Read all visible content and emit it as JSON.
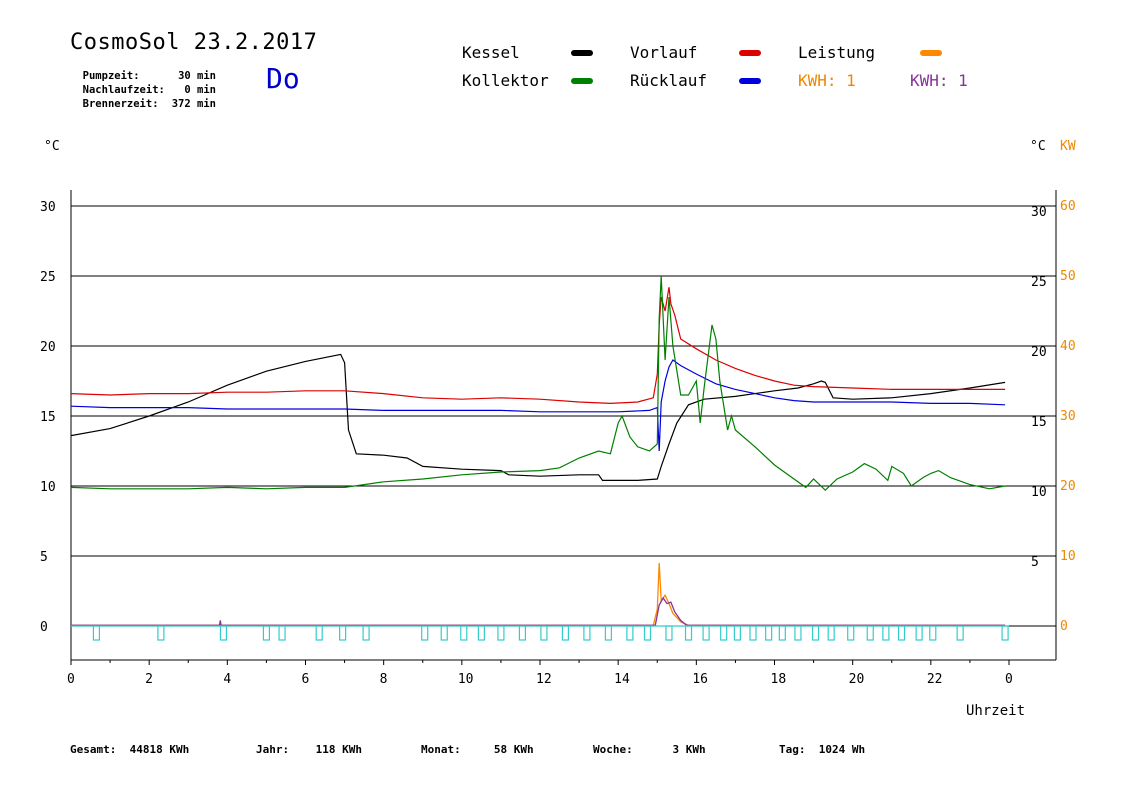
{
  "header": {
    "title": "CosmoSol 23.2.2017",
    "day": "Do",
    "info": [
      {
        "label": "Pumpzeit:",
        "value": "30 min"
      },
      {
        "label": "Nachlaufzeit:",
        "value": "0 min"
      },
      {
        "label": "Brennerzeit:",
        "value": "372 min"
      }
    ]
  },
  "legend": {
    "kessel": {
      "label": "Kessel",
      "color": "#000000"
    },
    "vorlauf": {
      "label": "Vorlauf",
      "color": "#dd0000"
    },
    "leistung": {
      "label": "Leistung",
      "color": "#ff8800"
    },
    "kollektor": {
      "label": "Kollektor",
      "color": "#008000"
    },
    "ruecklauf": {
      "label": "Rücklauf",
      "color": "#0000dd"
    },
    "kwh1": {
      "label": "KWH: 1",
      "color": "#ee8800"
    },
    "kwh2": {
      "label": "KWH: 1",
      "color": "#883399"
    }
  },
  "units": {
    "left": "°C",
    "right_c": "°C",
    "right_kw": "KW"
  },
  "footer": [
    {
      "label": "Gesamt:",
      "value": "44818 KWh"
    },
    {
      "label": "Jahr:",
      "value": "118 KWh"
    },
    {
      "label": "Monat:",
      "value": "58 KWh"
    },
    {
      "label": "Woche:",
      "value": "3 KWh"
    },
    {
      "label": "Tag:",
      "value": "1024 Wh"
    }
  ],
  "chart_data": {
    "type": "line",
    "xlabel": "Uhrzeit",
    "x_ticks": [
      "0",
      "2",
      "4",
      "6",
      "8",
      "10",
      "12",
      "14",
      "16",
      "18",
      "20",
      "22",
      "0"
    ],
    "y_ticks_left": [
      0,
      5,
      10,
      15,
      20,
      25,
      30
    ],
    "y_ticks_right_c": [
      0,
      5,
      10,
      15,
      20,
      25,
      30
    ],
    "y_ticks_right_kw": [
      0,
      10,
      20,
      30,
      40,
      50,
      60
    ],
    "xlim": [
      0,
      24
    ],
    "ylim": [
      -2.5,
      32
    ],
    "series": [
      {
        "key": "kessel",
        "color": "#000000",
        "points": [
          [
            0,
            13.6
          ],
          [
            1,
            14.1
          ],
          [
            2,
            15.0
          ],
          [
            3,
            16.0
          ],
          [
            4,
            17.2
          ],
          [
            5,
            18.2
          ],
          [
            6,
            18.9
          ],
          [
            6.9,
            19.4
          ],
          [
            7.0,
            18.8
          ],
          [
            7.1,
            14.0
          ],
          [
            7.3,
            12.3
          ],
          [
            8.0,
            12.2
          ],
          [
            8.6,
            12.0
          ],
          [
            9.0,
            11.4
          ],
          [
            10.0,
            11.2
          ],
          [
            11.0,
            11.1
          ],
          [
            11.2,
            10.8
          ],
          [
            12.0,
            10.7
          ],
          [
            13.0,
            10.8
          ],
          [
            13.5,
            10.8
          ],
          [
            13.6,
            10.4
          ],
          [
            14.0,
            10.4
          ],
          [
            14.5,
            10.4
          ],
          [
            15.0,
            10.5
          ],
          [
            15.1,
            11.4
          ],
          [
            15.3,
            13.0
          ],
          [
            15.5,
            14.5
          ],
          [
            15.8,
            15.8
          ],
          [
            16.2,
            16.2
          ],
          [
            17.0,
            16.4
          ],
          [
            18.0,
            16.8
          ],
          [
            18.6,
            17.0
          ],
          [
            19.0,
            17.3
          ],
          [
            19.2,
            17.5
          ],
          [
            19.3,
            17.4
          ],
          [
            19.5,
            16.3
          ],
          [
            20.0,
            16.2
          ],
          [
            21.0,
            16.3
          ],
          [
            22.0,
            16.6
          ],
          [
            23.0,
            17.0
          ],
          [
            23.9,
            17.4
          ]
        ]
      },
      {
        "key": "vorlauf",
        "color": "#dd0000",
        "points": [
          [
            0,
            16.6
          ],
          [
            1,
            16.5
          ],
          [
            2,
            16.6
          ],
          [
            3,
            16.6
          ],
          [
            4,
            16.7
          ],
          [
            5,
            16.7
          ],
          [
            6,
            16.8
          ],
          [
            7,
            16.8
          ],
          [
            8,
            16.6
          ],
          [
            9,
            16.3
          ],
          [
            10,
            16.2
          ],
          [
            11,
            16.3
          ],
          [
            12,
            16.2
          ],
          [
            13,
            16.0
          ],
          [
            13.8,
            15.9
          ],
          [
            14.5,
            16.0
          ],
          [
            14.9,
            16.3
          ],
          [
            15.0,
            18.0
          ],
          [
            15.05,
            21.5
          ],
          [
            15.1,
            23.5
          ],
          [
            15.2,
            22.5
          ],
          [
            15.3,
            24.2
          ],
          [
            15.35,
            23.0
          ],
          [
            15.45,
            22.2
          ],
          [
            15.6,
            20.5
          ],
          [
            16.0,
            19.8
          ],
          [
            16.5,
            19.0
          ],
          [
            17.0,
            18.4
          ],
          [
            17.5,
            17.9
          ],
          [
            18.0,
            17.5
          ],
          [
            18.5,
            17.2
          ],
          [
            19.0,
            17.1
          ],
          [
            20.0,
            17.0
          ],
          [
            21.0,
            16.9
          ],
          [
            22.0,
            16.9
          ],
          [
            23.0,
            16.9
          ],
          [
            23.9,
            16.9
          ]
        ]
      },
      {
        "key": "ruecklauf",
        "color": "#0000dd",
        "points": [
          [
            0,
            15.7
          ],
          [
            1,
            15.6
          ],
          [
            2,
            15.6
          ],
          [
            3,
            15.6
          ],
          [
            4,
            15.5
          ],
          [
            5,
            15.5
          ],
          [
            6,
            15.5
          ],
          [
            7,
            15.5
          ],
          [
            8,
            15.4
          ],
          [
            9,
            15.4
          ],
          [
            10,
            15.4
          ],
          [
            11,
            15.4
          ],
          [
            12,
            15.3
          ],
          [
            13,
            15.3
          ],
          [
            14,
            15.3
          ],
          [
            14.8,
            15.4
          ],
          [
            15.0,
            15.6
          ],
          [
            15.05,
            12.5
          ],
          [
            15.1,
            16.0
          ],
          [
            15.2,
            17.5
          ],
          [
            15.3,
            18.5
          ],
          [
            15.4,
            19.0
          ],
          [
            15.6,
            18.6
          ],
          [
            16.0,
            18.0
          ],
          [
            16.5,
            17.3
          ],
          [
            17.0,
            16.9
          ],
          [
            17.5,
            16.6
          ],
          [
            18.0,
            16.3
          ],
          [
            18.5,
            16.1
          ],
          [
            19.0,
            16.0
          ],
          [
            20.0,
            16.0
          ],
          [
            21.0,
            16.0
          ],
          [
            22.0,
            15.9
          ],
          [
            23.0,
            15.9
          ],
          [
            23.9,
            15.8
          ]
        ]
      },
      {
        "key": "kollektor",
        "color": "#008000",
        "points": [
          [
            0,
            9.9
          ],
          [
            1,
            9.8
          ],
          [
            2,
            9.8
          ],
          [
            3,
            9.8
          ],
          [
            4,
            9.9
          ],
          [
            5,
            9.8
          ],
          [
            6,
            9.9
          ],
          [
            7,
            9.9
          ],
          [
            7.5,
            10.1
          ],
          [
            8,
            10.3
          ],
          [
            9,
            10.5
          ],
          [
            10,
            10.8
          ],
          [
            11,
            11.0
          ],
          [
            12,
            11.1
          ],
          [
            12.5,
            11.3
          ],
          [
            13,
            12.0
          ],
          [
            13.5,
            12.5
          ],
          [
            13.8,
            12.3
          ],
          [
            14.0,
            14.5
          ],
          [
            14.1,
            15.0
          ],
          [
            14.3,
            13.5
          ],
          [
            14.5,
            12.8
          ],
          [
            14.8,
            12.5
          ],
          [
            15.0,
            13.0
          ],
          [
            15.05,
            22.0
          ],
          [
            15.1,
            25.0
          ],
          [
            15.2,
            19.0
          ],
          [
            15.3,
            23.5
          ],
          [
            15.4,
            20.0
          ],
          [
            15.6,
            16.5
          ],
          [
            15.8,
            16.5
          ],
          [
            16.0,
            17.5
          ],
          [
            16.1,
            14.5
          ],
          [
            16.2,
            17.0
          ],
          [
            16.4,
            21.5
          ],
          [
            16.5,
            20.5
          ],
          [
            16.6,
            17.5
          ],
          [
            16.8,
            14.0
          ],
          [
            16.9,
            15.0
          ],
          [
            17.0,
            14.0
          ],
          [
            17.5,
            12.8
          ],
          [
            18.0,
            11.5
          ],
          [
            18.5,
            10.5
          ],
          [
            18.8,
            9.9
          ],
          [
            19.0,
            10.5
          ],
          [
            19.3,
            9.7
          ],
          [
            19.6,
            10.5
          ],
          [
            20.0,
            11.0
          ],
          [
            20.3,
            11.6
          ],
          [
            20.6,
            11.2
          ],
          [
            20.9,
            10.4
          ],
          [
            21.0,
            11.4
          ],
          [
            21.3,
            10.9
          ],
          [
            21.5,
            10.0
          ],
          [
            21.8,
            10.6
          ],
          [
            22.0,
            10.9
          ],
          [
            22.2,
            11.1
          ],
          [
            22.5,
            10.6
          ],
          [
            23.0,
            10.1
          ],
          [
            23.5,
            9.8
          ],
          [
            23.9,
            10.0
          ]
        ]
      },
      {
        "key": "leistung",
        "color": "#ff8800",
        "points": [
          [
            0,
            0.05
          ],
          [
            14.9,
            0.05
          ],
          [
            15.0,
            1.2
          ],
          [
            15.05,
            4.5
          ],
          [
            15.1,
            1.8
          ],
          [
            15.2,
            2.2
          ],
          [
            15.3,
            1.6
          ],
          [
            15.4,
            0.9
          ],
          [
            15.5,
            0.6
          ],
          [
            15.6,
            0.3
          ],
          [
            15.8,
            0.05
          ],
          [
            23.9,
            0.05
          ]
        ]
      },
      {
        "key": "kwh",
        "color": "#883399",
        "points": [
          [
            0,
            0.05
          ],
          [
            3.8,
            0.05
          ],
          [
            3.82,
            0.4
          ],
          [
            3.84,
            0.05
          ],
          [
            14.95,
            0.05
          ],
          [
            15.05,
            1.5
          ],
          [
            15.15,
            2.0
          ],
          [
            15.25,
            1.6
          ],
          [
            15.35,
            1.7
          ],
          [
            15.45,
            1.0
          ],
          [
            15.6,
            0.4
          ],
          [
            15.75,
            0.05
          ],
          [
            23.9,
            0.05
          ]
        ]
      }
    ]
  }
}
